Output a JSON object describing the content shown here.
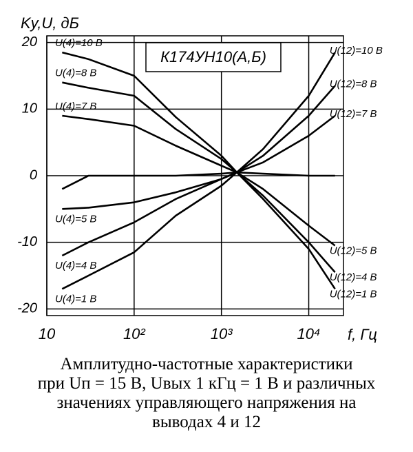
{
  "chart_data": {
    "type": "line",
    "title": "К174УН10(А,Б)",
    "y_label": "Kу,U, дБ",
    "x_label": "f, Гц",
    "log_x": true,
    "grid": true,
    "color": "#000000",
    "xlim": [
      10,
      25000
    ],
    "ylim": [
      -21,
      21
    ],
    "xticks": [
      10,
      {
        "value": 100,
        "label": "10²"
      },
      {
        "value": 1000,
        "label": "10³"
      },
      {
        "value": 10000,
        "label": "10⁴"
      }
    ],
    "yticks": [
      20,
      10,
      0,
      -10,
      -20
    ],
    "x": [
      15,
      30,
      100,
      300,
      1000,
      1500,
      3000,
      10000,
      20000
    ],
    "series": [
      {
        "name": "U(4)=10 В",
        "end_label": "U(12)=1 В",
        "values": [
          18.5,
          17.5,
          15,
          8.8,
          3,
          0.5,
          -3.5,
          -11,
          -17
        ]
      },
      {
        "name": "U(4)=8 В",
        "end_label": "U(12)=4 В",
        "values": [
          14,
          13.2,
          12,
          7,
          2.5,
          0.5,
          -3,
          -10,
          -14.5
        ]
      },
      {
        "name": "U(4)=7 В",
        "end_label": "U(12)=5 В",
        "values": [
          9,
          8.5,
          7.5,
          4.5,
          1.5,
          0.5,
          -2,
          -7.5,
          -10.5
        ]
      },
      {
        "name": null,
        "end_label": null,
        "values": [
          -2,
          0,
          0,
          0,
          0.3,
          0.5,
          0.3,
          0,
          0
        ]
      },
      {
        "name": "U(4)=5 В",
        "end_label": "U(12)=7 В",
        "values": [
          -5,
          -4.8,
          -4,
          -2.5,
          -0.5,
          0.5,
          2,
          6,
          9
        ]
      },
      {
        "name": "U(4)=4 В",
        "end_label": "U(12)=8 В",
        "values": [
          -12,
          -10,
          -7,
          -3.5,
          -0.5,
          0.5,
          3,
          9,
          13.5
        ]
      },
      {
        "name": "U(4)=1 В",
        "end_label": "U(12)=10 В",
        "values": [
          -17,
          -15,
          -11.5,
          -6,
          -1.5,
          0.5,
          4,
          12,
          18.5
        ]
      }
    ]
  },
  "caption": [
    "Амплитудно-частотные характеристики",
    "при Uп = 15 В, Uвых 1 кГц = 1 В и различных",
    "значениях управляющего напряжения на",
    "выводах 4 и 12"
  ]
}
